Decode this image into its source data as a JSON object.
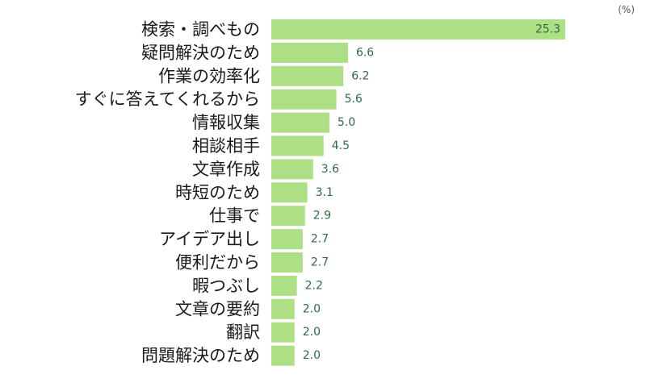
{
  "chart_data": {
    "type": "bar",
    "orientation": "horizontal",
    "unit": "(%)",
    "bar_color": "#addf84",
    "label_color": "#2e6b45",
    "categories": [
      "検索・調べもの",
      "疑問解決のため",
      "作業の効率化",
      "すぐに答えてくれるから",
      "情報収集",
      "相談相手",
      "文章作成",
      "時短のため",
      "仕事で",
      "アイデア出し",
      "便利だから",
      "暇つぶし",
      "文章の要約",
      "翻訳",
      "問題解決のため"
    ],
    "values": [
      25.3,
      6.6,
      6.2,
      5.6,
      5.0,
      4.5,
      3.6,
      3.1,
      2.9,
      2.7,
      2.7,
      2.2,
      2.0,
      2.0,
      2.0
    ],
    "value_labels": [
      "25.3",
      "6.6",
      "6.2",
      "5.6",
      "5.0",
      "4.5",
      "3.6",
      "3.1",
      "2.9",
      "2.7",
      "2.7",
      "2.2",
      "2.0",
      "2.0",
      "2.0"
    ],
    "xlim": [
      0,
      25.3
    ]
  }
}
